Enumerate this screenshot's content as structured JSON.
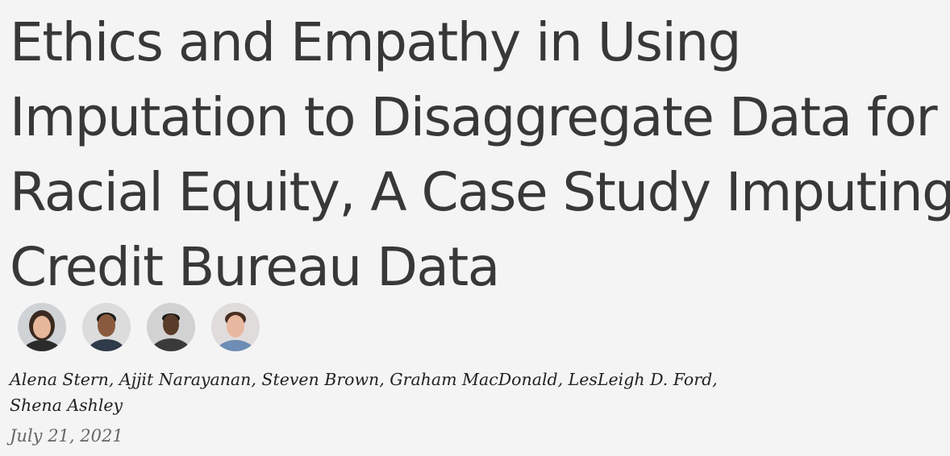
{
  "article": {
    "title_lines": [
      "Ethics and Empathy in Using",
      "Imputation to Disaggregate Data for",
      "Racial Equity, A Case Study Imputing",
      "Credit Bureau Data"
    ],
    "authors": [
      "Alena Stern,",
      "Ajjit Narayanan,",
      "Steven Brown,",
      "Graham MacDonald,",
      "LesLeigh D. Ford,",
      "Shena Ashley"
    ],
    "date": "July 21, 2021"
  },
  "avatars": [
    {
      "icon": "author-photo-icon",
      "bg": "#cfd3d6",
      "skin": "#e6b79a",
      "hair": "#3a2a20",
      "shirt": "#2b2b2b"
    },
    {
      "icon": "author-photo-icon",
      "bg": "#dcdcdc",
      "skin": "#8a5a3e",
      "hair": "#1c1c1c",
      "shirt": "#2f3a4a"
    },
    {
      "icon": "author-photo-icon",
      "bg": "#d2d2d2",
      "skin": "#5a3a28",
      "hair": "#1a1a1a",
      "shirt": "#3a3a3a"
    },
    {
      "icon": "author-photo-icon",
      "bg": "#e0dcdc",
      "skin": "#e8b8a0",
      "hair": "#4a2e22",
      "shirt": "#6d8db5"
    }
  ]
}
